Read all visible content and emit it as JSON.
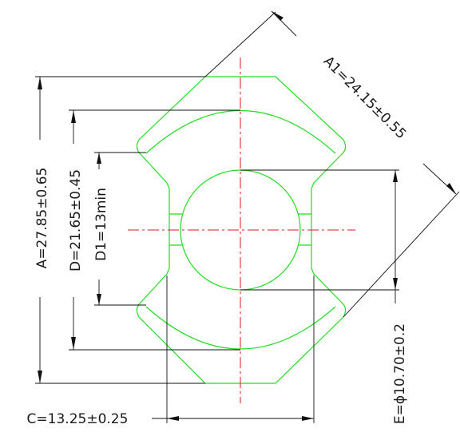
{
  "dimensions": {
    "a": "A=27.85±0.65",
    "d": "D=21.65±0.45",
    "d1": "D1=13min",
    "a1": "A1=24.15±0.55",
    "c": "C=13.25±0.25",
    "e": "E=ϕ10.70±0.2"
  },
  "colors": {
    "outline": "#22dd22",
    "centerline": "#e01818",
    "dimension": "#111111"
  }
}
